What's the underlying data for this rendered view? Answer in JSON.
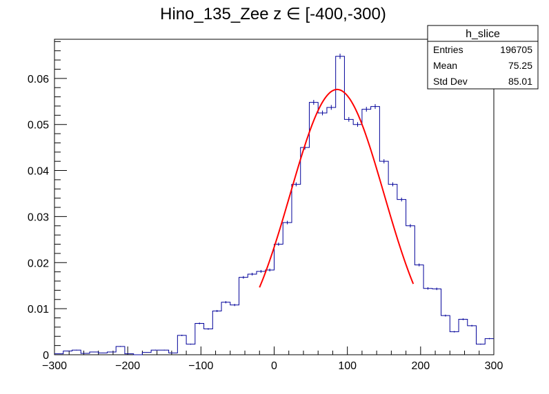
{
  "chart_data": {
    "type": "histogram",
    "title": "Hino_135_Zee z  ∈ [-400,-300)",
    "xlim": [
      -300,
      300
    ],
    "ylim": [
      0,
      0.0685
    ],
    "x_ticks": [
      -300,
      -200,
      -100,
      0,
      100,
      200,
      300
    ],
    "x_tick_labels": [
      "−300",
      "−200",
      "−100",
      "0",
      "100",
      "200",
      "300"
    ],
    "y_ticks": [
      0,
      0.01,
      0.02,
      0.03,
      0.04,
      0.05,
      0.06
    ],
    "y_tick_labels": [
      "0",
      "0.01",
      "0.02",
      "0.03",
      "0.04",
      "0.05",
      "0.06"
    ],
    "bin_width": 12,
    "bin_low_edges": [
      -300,
      -288,
      -276,
      -264,
      -252,
      -240,
      -228,
      -216,
      -204,
      -192,
      -180,
      -168,
      -156,
      -144,
      -132,
      -120,
      -108,
      -96,
      -84,
      -72,
      -60,
      -48,
      -36,
      -24,
      -12,
      0,
      12,
      24,
      36,
      48,
      60,
      72,
      84,
      96,
      108,
      120,
      132,
      144,
      156,
      168,
      180,
      192,
      204,
      216,
      228,
      240,
      252,
      264,
      276,
      288
    ],
    "values": [
      0.0002,
      0.0008,
      0.001,
      0.0003,
      0.0006,
      0.0004,
      0.0006,
      0.0018,
      0.0002,
      0.0,
      0.0005,
      0.001,
      0.001,
      0.0004,
      0.0042,
      0.0023,
      0.0068,
      0.0056,
      0.0095,
      0.0114,
      0.0108,
      0.0168,
      0.0175,
      0.0181,
      0.0184,
      0.024,
      0.0287,
      0.037,
      0.045,
      0.0548,
      0.0525,
      0.0537,
      0.0648,
      0.0511,
      0.05,
      0.0533,
      0.0539,
      0.042,
      0.037,
      0.0337,
      0.028,
      0.0195,
      0.0144,
      0.0143,
      0.0085,
      0.005,
      0.0077,
      0.0063,
      0.0023,
      0.0035
    ],
    "fit": {
      "name": "gaus",
      "color": "#ff0000",
      "range": [
        -20,
        190
      ],
      "constant": 0.0576,
      "mean": 86,
      "sigma": 64
    },
    "line_color": "#000099",
    "stats_box": {
      "name": "h_slice",
      "rows": [
        {
          "label": "Entries",
          "value": "196705"
        },
        {
          "label": "Mean",
          "value": "75.25"
        },
        {
          "label": "Std Dev",
          "value": "85.01"
        }
      ]
    }
  }
}
